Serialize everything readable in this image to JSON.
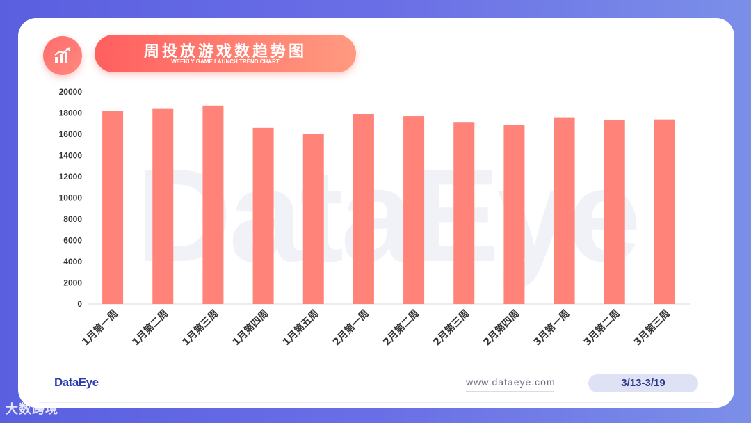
{
  "header": {
    "title": "周投放游戏数趋势图",
    "subtitle": "WEEKLY GAME LAUNCH TREND CHART",
    "icon": "chart-growth-icon"
  },
  "watermark": "DataEye",
  "footer": {
    "brand": "DataEye",
    "website": "www.dataeye.com",
    "date_range": "3/13-3/19",
    "corner_mark": "大数跨境"
  },
  "colors": {
    "bar": "#ff8378",
    "accent": "#ff5f5f",
    "brand": "#2b3bb0"
  },
  "chart_data": {
    "type": "bar",
    "categories": [
      "1月第一周",
      "1月第二周",
      "1月第三周",
      "1月第四周",
      "1月第五周",
      "2月第一周",
      "2月第二周",
      "2月第三周",
      "2月第四周",
      "3月第一周",
      "3月第二周",
      "3月第三周"
    ],
    "values": [
      18200,
      18450,
      18700,
      16600,
      16000,
      17900,
      17700,
      17100,
      16900,
      17600,
      17350,
      17400
    ],
    "yticks": [
      0,
      2000,
      4000,
      6000,
      8000,
      10000,
      12000,
      14000,
      16000,
      18000,
      20000
    ],
    "ylim": [
      0,
      20000
    ],
    "xlabel": "",
    "ylabel": "",
    "title": "",
    "grid": false,
    "legend": "none"
  }
}
